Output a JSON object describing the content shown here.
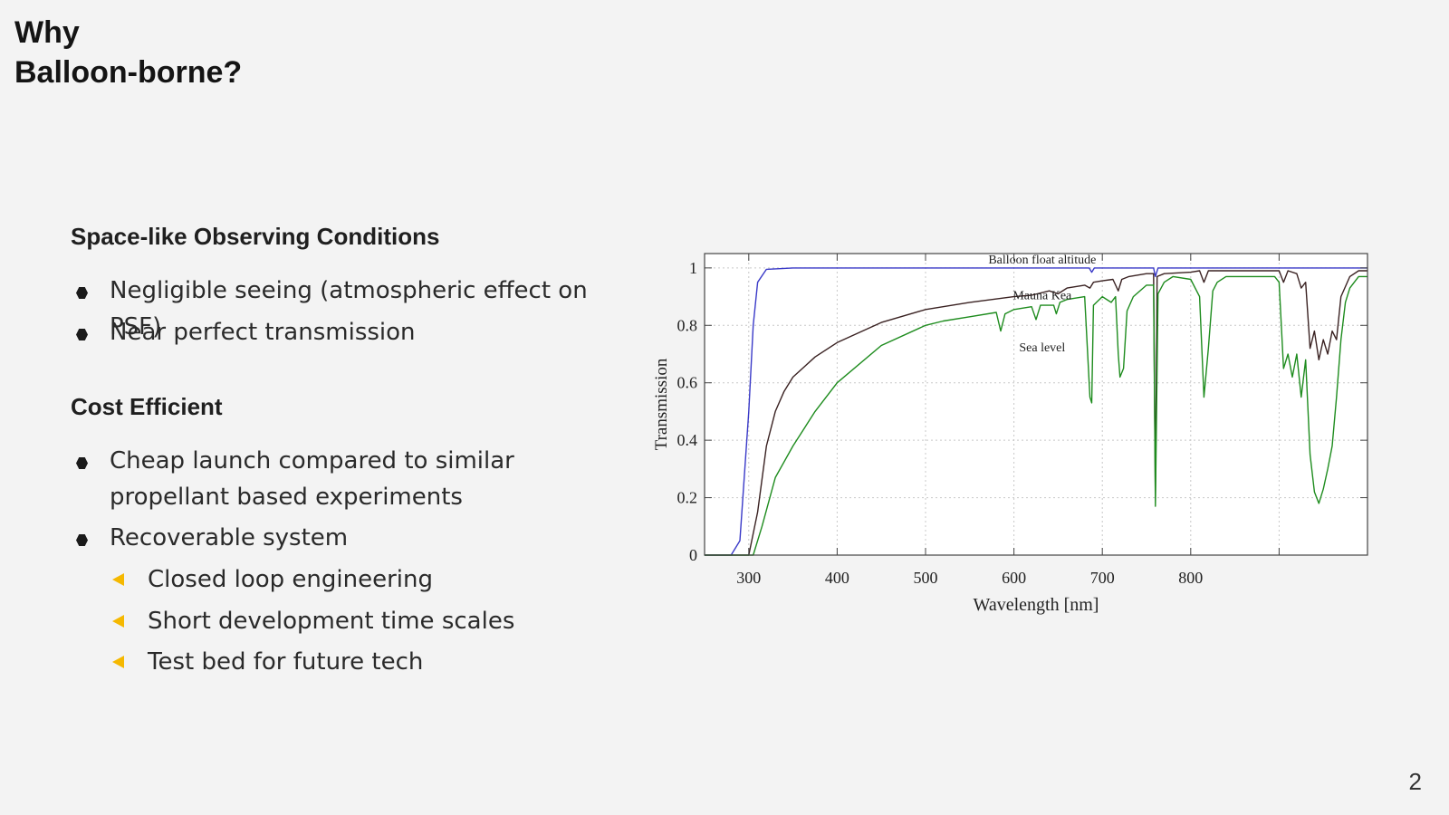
{
  "slide": {
    "title_line1": "Why",
    "title_line2": "Balloon-borne?",
    "page_number": "2"
  },
  "section1": {
    "heading": "Space-like Observing Conditions",
    "bullets": [
      "Negligible seeing (atmospheric effect on PSF)",
      "Near perfect transmission"
    ]
  },
  "section2": {
    "heading": "Cost Efficient",
    "bullets": [
      "Cheap launch compared to similar propellant based experiments",
      "Recoverable system"
    ],
    "sub_bullets": [
      "Closed loop engineering",
      "Short development time scales",
      "Test bed for future tech"
    ]
  },
  "colors": {
    "accent_triangle": "#f5b800",
    "balloon_series": "#3a3ac8",
    "mauna_kea_series": "#3a2222",
    "sea_level_series": "#1e8c1e"
  },
  "chart_data": {
    "type": "line",
    "title": "",
    "xlabel": "Wavelength [nm]",
    "ylabel": "Transmission",
    "xlim": [
      250,
      1000
    ],
    "ylim": [
      0,
      1.05
    ],
    "x_ticks": [
      300,
      400,
      500,
      600,
      700,
      800,
      900
    ],
    "x_tick_labels": [
      "300",
      "400",
      "500",
      "600",
      "700",
      "800",
      " "
    ],
    "y_ticks": [
      0,
      0.2,
      0.4,
      0.6,
      0.8,
      1
    ],
    "y_tick_labels": [
      "0",
      "0.2",
      "0.4",
      "0.6",
      "0.8",
      "1"
    ],
    "grid": true,
    "series": [
      {
        "name": "Balloon float altitude",
        "color": "#3a3ac8",
        "points": [
          [
            250,
            0
          ],
          [
            280,
            0
          ],
          [
            290,
            0.05
          ],
          [
            300,
            0.5
          ],
          [
            305,
            0.8
          ],
          [
            310,
            0.95
          ],
          [
            320,
            0.995
          ],
          [
            350,
            1
          ],
          [
            685,
            1
          ],
          [
            688,
            0.985
          ],
          [
            691,
            1
          ],
          [
            758,
            1
          ],
          [
            760,
            0.97
          ],
          [
            763,
            1
          ],
          [
            1000,
            1
          ]
        ]
      },
      {
        "name": "Mauna Kea",
        "color": "#3a2222",
        "points": [
          [
            250,
            0
          ],
          [
            300,
            0
          ],
          [
            310,
            0.15
          ],
          [
            320,
            0.38
          ],
          [
            330,
            0.5
          ],
          [
            340,
            0.57
          ],
          [
            350,
            0.62
          ],
          [
            375,
            0.69
          ],
          [
            400,
            0.74
          ],
          [
            450,
            0.81
          ],
          [
            500,
            0.855
          ],
          [
            550,
            0.88
          ],
          [
            600,
            0.9
          ],
          [
            620,
            0.905
          ],
          [
            640,
            0.92
          ],
          [
            650,
            0.91
          ],
          [
            660,
            0.93
          ],
          [
            680,
            0.94
          ],
          [
            686,
            0.93
          ],
          [
            690,
            0.95
          ],
          [
            700,
            0.955
          ],
          [
            712,
            0.96
          ],
          [
            718,
            0.92
          ],
          [
            722,
            0.96
          ],
          [
            730,
            0.97
          ],
          [
            750,
            0.98
          ],
          [
            758,
            0.98
          ],
          [
            760,
            0.2
          ],
          [
            762,
            0.97
          ],
          [
            770,
            0.98
          ],
          [
            800,
            0.985
          ],
          [
            810,
            0.99
          ],
          [
            815,
            0.95
          ],
          [
            820,
            0.99
          ],
          [
            900,
            0.99
          ],
          [
            905,
            0.95
          ],
          [
            910,
            0.99
          ],
          [
            920,
            0.98
          ],
          [
            925,
            0.93
          ],
          [
            930,
            0.95
          ],
          [
            935,
            0.72
          ],
          [
            940,
            0.78
          ],
          [
            945,
            0.68
          ],
          [
            950,
            0.75
          ],
          [
            955,
            0.7
          ],
          [
            960,
            0.78
          ],
          [
            965,
            0.75
          ],
          [
            970,
            0.9
          ],
          [
            980,
            0.97
          ],
          [
            990,
            0.99
          ],
          [
            1000,
            0.99
          ]
        ]
      },
      {
        "name": "Sea level",
        "color": "#1e8c1e",
        "points": [
          [
            250,
            0
          ],
          [
            305,
            0
          ],
          [
            315,
            0.1
          ],
          [
            330,
            0.27
          ],
          [
            350,
            0.38
          ],
          [
            375,
            0.5
          ],
          [
            400,
            0.6
          ],
          [
            450,
            0.73
          ],
          [
            500,
            0.8
          ],
          [
            520,
            0.815
          ],
          [
            550,
            0.83
          ],
          [
            580,
            0.845
          ],
          [
            585,
            0.78
          ],
          [
            590,
            0.84
          ],
          [
            600,
            0.855
          ],
          [
            620,
            0.865
          ],
          [
            625,
            0.82
          ],
          [
            630,
            0.87
          ],
          [
            645,
            0.87
          ],
          [
            648,
            0.84
          ],
          [
            652,
            0.88
          ],
          [
            660,
            0.89
          ],
          [
            680,
            0.9
          ],
          [
            686,
            0.55
          ],
          [
            688,
            0.53
          ],
          [
            690,
            0.87
          ],
          [
            700,
            0.9
          ],
          [
            710,
            0.88
          ],
          [
            715,
            0.9
          ],
          [
            718,
            0.7
          ],
          [
            720,
            0.62
          ],
          [
            724,
            0.65
          ],
          [
            728,
            0.85
          ],
          [
            735,
            0.9
          ],
          [
            750,
            0.94
          ],
          [
            758,
            0.94
          ],
          [
            760,
            0.17
          ],
          [
            763,
            0.91
          ],
          [
            770,
            0.95
          ],
          [
            780,
            0.97
          ],
          [
            800,
            0.96
          ],
          [
            810,
            0.9
          ],
          [
            815,
            0.55
          ],
          [
            820,
            0.72
          ],
          [
            825,
            0.92
          ],
          [
            830,
            0.95
          ],
          [
            840,
            0.97
          ],
          [
            880,
            0.97
          ],
          [
            895,
            0.97
          ],
          [
            900,
            0.95
          ],
          [
            905,
            0.65
          ],
          [
            910,
            0.7
          ],
          [
            915,
            0.62
          ],
          [
            920,
            0.7
          ],
          [
            925,
            0.55
          ],
          [
            930,
            0.68
          ],
          [
            935,
            0.35
          ],
          [
            940,
            0.22
          ],
          [
            945,
            0.18
          ],
          [
            950,
            0.23
          ],
          [
            955,
            0.3
          ],
          [
            960,
            0.38
          ],
          [
            965,
            0.55
          ],
          [
            970,
            0.75
          ],
          [
            975,
            0.88
          ],
          [
            980,
            0.93
          ],
          [
            990,
            0.97
          ],
          [
            1000,
            0.97
          ]
        ]
      }
    ],
    "annotations": [
      {
        "text": "Balloon float altitude",
        "x": 632,
        "y": 1.015
      },
      {
        "text": "Mauna Kea",
        "x": 632,
        "y": 0.89
      },
      {
        "text": "Sea level",
        "x": 632,
        "y": 0.71
      }
    ]
  }
}
